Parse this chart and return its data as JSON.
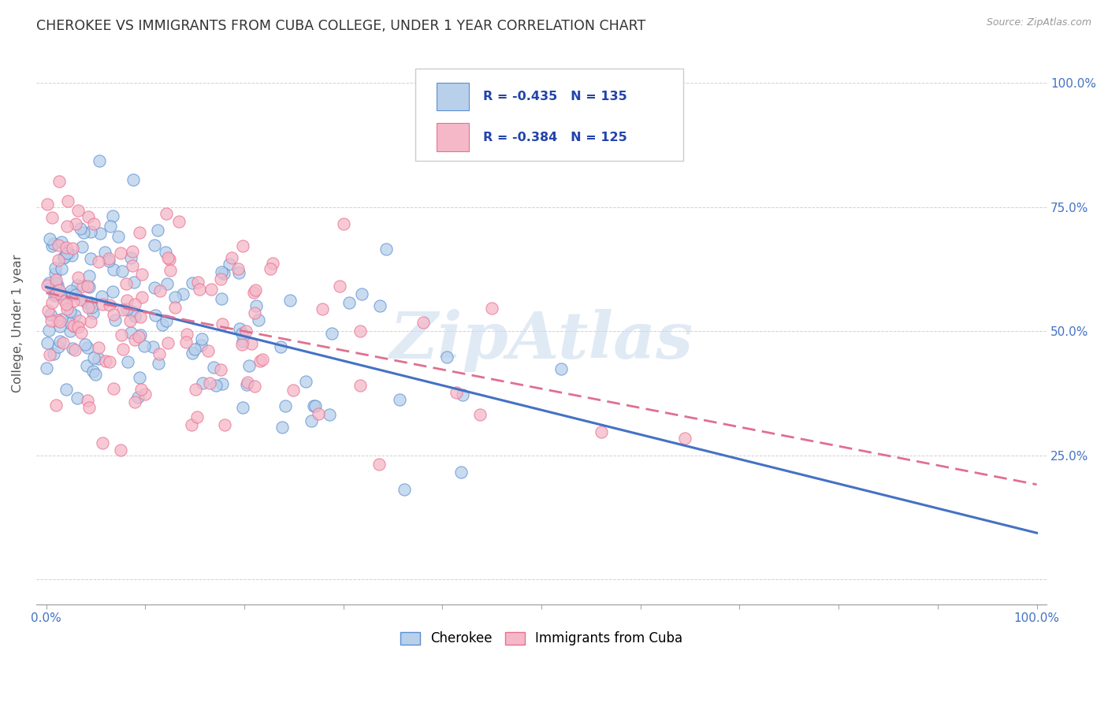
{
  "title": "CHEROKEE VS IMMIGRANTS FROM CUBA COLLEGE, UNDER 1 YEAR CORRELATION CHART",
  "source": "Source: ZipAtlas.com",
  "ylabel": "College, Under 1 year",
  "legend_label1": "Cherokee",
  "legend_label2": "Immigrants from Cuba",
  "r1": -0.435,
  "n1": 135,
  "r2": -0.384,
  "n2": 125,
  "color_cherokee_fill": "#b8d0ea",
  "color_cuba_fill": "#f5b8c8",
  "color_cherokee_edge": "#5b8fd4",
  "color_cuba_edge": "#e87090",
  "color_cherokee_line": "#4472c4",
  "color_cuba_line": "#e07090",
  "watermark": "ZipAtlas",
  "watermark_color": "#ccdcee",
  "ytick_values": [
    0.0,
    0.25,
    0.5,
    0.75,
    1.0
  ],
  "ytick_labels_right": [
    "",
    "25.0%",
    "50.0%",
    "75.0%",
    "100.0%"
  ],
  "xlim": [
    -0.01,
    1.01
  ],
  "ylim": [
    -0.05,
    1.08
  ],
  "seed_cherokee": 42,
  "seed_cuba": 99,
  "title_color": "#333333",
  "source_color": "#999999",
  "axis_label_color": "#555555",
  "right_tick_color": "#4472c4",
  "bottom_tick_label_color": "#4472c4"
}
